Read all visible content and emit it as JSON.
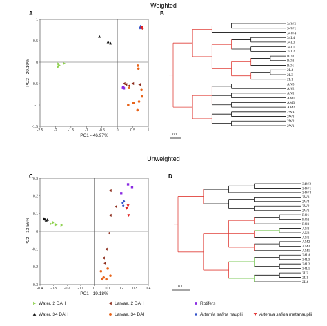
{
  "section_titles": {
    "weighted": "Weighted",
    "unweighted": "Unweighted"
  },
  "panel_labels": {
    "a": "A",
    "b": "B",
    "c": "C",
    "d": "D"
  },
  "colors": {
    "water2": "#8fd14f",
    "water34": "#111111",
    "larvae2": "#8b2a1a",
    "larvae34": "#e8641a",
    "rotifers": "#8a2be2",
    "nauplii": "#3050c8",
    "metanauplii": "#e02020",
    "tree_red": "#e0403a",
    "tree_green": "#7cc85a",
    "tree_black": "#111111"
  },
  "legend": [
    {
      "key": "water2",
      "marker": "triangle-right",
      "label": "Water, 2 DAH"
    },
    {
      "key": "larvae2",
      "marker": "triangle-left",
      "label": "Larvae, 2 DAH"
    },
    {
      "key": "rotifers",
      "marker": "square",
      "label": "Rotifers"
    },
    {
      "key": "water34",
      "marker": "triangle-up",
      "label": "Water, 34 DAH"
    },
    {
      "key": "larvae34",
      "marker": "circle",
      "label": "Larvae, 34 DAH"
    },
    {
      "key": "nauplii",
      "marker": "diamond",
      "label_italic": "Artemia salina",
      "label_rest": " nauplii"
    },
    {
      "key": "metanauplii",
      "marker": "triangle-down",
      "label_italic": "Artemia salina",
      "label_rest": " metanauplii"
    }
  ],
  "tree_b_scale": "0.1",
  "tree_d_scale": "0.1",
  "chart_data": [
    {
      "panel": "A",
      "type": "scatter",
      "xlabel": "PC1 - 46.97%",
      "ylabel": "PC2 - 20.10%",
      "xlim": [
        -2.5,
        1.0
      ],
      "ylim": [
        -1.5,
        1.0
      ],
      "xticks": [
        -2.5,
        -2.0,
        -1.5,
        -1.0,
        -0.5,
        0.0,
        0.5,
        1.0
      ],
      "xtick_labels": [
        "-2.5",
        "-2",
        "-1.5",
        "-1",
        "-0.5",
        "0",
        "0.5",
        "1"
      ],
      "yticks": [
        -1.5,
        -1.0,
        -0.5,
        0.0,
        0.5,
        1.0
      ],
      "ytick_labels": [
        "-1.5",
        "-1",
        "-0.5",
        "0",
        "0.5",
        "1"
      ],
      "series": [
        {
          "group": "water2",
          "points": [
            [
              -1.88,
              -0.07
            ],
            [
              -1.92,
              -0.11
            ],
            [
              -1.72,
              -0.03
            ],
            [
              -1.9,
              -0.04
            ]
          ]
        },
        {
          "group": "water34",
          "points": [
            [
              -0.58,
              0.6
            ],
            [
              -0.3,
              0.47
            ],
            [
              -0.22,
              0.44
            ]
          ]
        },
        {
          "group": "larvae2",
          "points": [
            [
              0.22,
              -0.5
            ],
            [
              0.28,
              -0.52
            ],
            [
              0.38,
              -0.55
            ],
            [
              0.5,
              -0.5
            ],
            [
              0.72,
              -0.52
            ]
          ]
        },
        {
          "group": "larvae34",
          "points": [
            [
              0.66,
              -0.08
            ],
            [
              0.68,
              -0.15
            ],
            [
              0.38,
              -0.6
            ],
            [
              0.78,
              -0.65
            ],
            [
              0.8,
              -0.8
            ],
            [
              0.7,
              -0.92
            ],
            [
              0.52,
              -0.95
            ],
            [
              0.65,
              -1.12
            ],
            [
              0.35,
              -1.0
            ]
          ]
        },
        {
          "group": "rotifers",
          "points": [
            [
              0.18,
              -0.6
            ],
            [
              0.21,
              -0.61
            ],
            [
              0.19,
              -0.59
            ]
          ]
        },
        {
          "group": "nauplii",
          "points": [
            [
              0.75,
              0.84
            ],
            [
              0.73,
              0.8
            ],
            [
              0.77,
              0.79
            ]
          ]
        },
        {
          "group": "metanauplii",
          "points": [
            [
              0.8,
              0.82
            ],
            [
              0.78,
              0.8
            ],
            [
              0.82,
              0.78
            ]
          ]
        }
      ]
    },
    {
      "panel": "C",
      "type": "scatter",
      "xlabel": "PC1 - 19.18%",
      "ylabel": "PC2 - 13.56%",
      "xlim": [
        -0.4,
        0.4
      ],
      "ylim": [
        -0.3,
        0.3
      ],
      "xticks": [
        -0.4,
        -0.3,
        -0.2,
        -0.1,
        0.0,
        0.1,
        0.2,
        0.3,
        0.4
      ],
      "xtick_labels": [
        "-0.4",
        "-0.3",
        "-0.2",
        "-0.1",
        "0",
        "0.1",
        "0.2",
        "0.3",
        "0.4"
      ],
      "yticks": [
        -0.3,
        -0.2,
        -0.1,
        0.0,
        0.1,
        0.2,
        0.3
      ],
      "ytick_labels": [
        "-0.3",
        "-0.2",
        "-0.1",
        "0",
        "0.1",
        "0.2",
        "0.3"
      ],
      "series": [
        {
          "group": "water2",
          "points": [
            [
              -0.32,
              0.042
            ],
            [
              -0.3,
              0.05
            ],
            [
              -0.28,
              0.038
            ],
            [
              -0.24,
              0.035
            ]
          ]
        },
        {
          "group": "water34",
          "points": [
            [
              -0.37,
              0.072
            ],
            [
              -0.36,
              0.068
            ],
            [
              -0.355,
              0.062
            ],
            [
              -0.345,
              0.066
            ]
          ]
        },
        {
          "group": "larvae2",
          "points": [
            [
              0.12,
              0.23
            ],
            [
              0.16,
              0.14
            ],
            [
              0.12,
              0.09
            ],
            [
              0.11,
              -0.01
            ],
            [
              0.09,
              -0.1
            ],
            [
              0.07,
              -0.15
            ],
            [
              0.08,
              -0.18
            ]
          ]
        },
        {
          "group": "larvae34",
          "points": [
            [
              0.07,
              -0.26
            ],
            [
              0.09,
              -0.27
            ],
            [
              0.12,
              -0.25
            ],
            [
              0.06,
              -0.27
            ],
            [
              0.05,
              -0.225
            ],
            [
              0.1,
              -0.21
            ]
          ]
        },
        {
          "group": "rotifers",
          "points": [
            [
              0.25,
              0.265
            ],
            [
              0.28,
              0.25
            ],
            [
              0.2,
              0.215
            ]
          ]
        },
        {
          "group": "nauplii",
          "points": [
            [
              0.21,
              0.16
            ],
            [
              0.215,
              0.145
            ],
            [
              0.22,
              0.17
            ]
          ]
        },
        {
          "group": "metanauplii",
          "points": [
            [
              0.25,
              0.145
            ],
            [
              0.255,
              0.09
            ],
            [
              0.24,
              0.13
            ]
          ]
        }
      ]
    }
  ],
  "tree_b": {
    "panel": "B",
    "type": "tree",
    "tree": {
      "c": "r",
      "ch": [
        {
          "c": "r",
          "ch": [
            {
              "c": "r",
              "ch": [
                {
                  "c": "k",
                  "ch": [
                    {
                      "n": "34W2"
                    },
                    {
                      "n": "34W1"
                    }
                  ]
                },
                {
                  "n": "34W4"
                }
              ]
            },
            {
              "c": "r",
              "ch": [
                {
                  "c": "r",
                  "ch": [
                    {
                      "c": "k",
                      "ch": [
                        {
                          "n": "34L4"
                        },
                        {
                          "n": "34L3"
                        }
                      ]
                    },
                    {
                      "c": "k",
                      "ch": [
                        {
                          "n": "34L1"
                        },
                        {
                          "n": "34L2"
                        }
                      ]
                    }
                  ]
                },
                {
                  "c": "r",
                  "ch": [
                    {
                      "c": "r",
                      "ch": [
                        {
                          "c": "k",
                          "ch": [
                            {
                              "n": "RO3"
                            },
                            {
                              "n": "RO2"
                            }
                          ]
                        },
                        {
                          "n": "RO1"
                        }
                      ]
                    },
                    {
                      "c": "r",
                      "ch": [
                        {
                          "c": "k",
                          "ch": [
                            {
                              "n": "2L4"
                            },
                            {
                              "n": "2L3"
                            }
                          ]
                        },
                        {
                          "n": "2L1"
                        }
                      ]
                    }
                  ]
                }
              ]
            }
          ]
        },
        {
          "c": "r",
          "ch": [
            {
              "c": "r",
              "ch": [
                {
                  "c": "k",
                  "ch": [
                    {
                      "n": "AN3"
                    },
                    {
                      "n": "AN2"
                    }
                  ]
                },
                {
                  "c": "k",
                  "ch": [
                    {
                      "n": "AN1"
                    },
                    {
                      "n": "AM1"
                    }
                  ]
                },
                {
                  "c": "k",
                  "ch": [
                    {
                      "n": "AM3"
                    },
                    {
                      "n": "AM2"
                    }
                  ]
                }
              ]
            },
            {
              "c": "r",
              "ch": [
                {
                  "c": "k",
                  "ch": [
                    {
                      "n": "2W4"
                    },
                    {
                      "n": "2W3"
                    }
                  ]
                },
                {
                  "c": "k",
                  "ch": [
                    {
                      "n": "2W2"
                    },
                    {
                      "n": "2W1"
                    }
                  ]
                }
              ]
            }
          ]
        }
      ]
    }
  },
  "tree_d": {
    "panel": "D",
    "type": "tree",
    "tree": {
      "c": "r",
      "ch": [
        {
          "c": "r",
          "ch": [
            {
              "c": "k",
              "ch": [
                {
                  "c": "k",
                  "ch": [
                    {
                      "n": "34W2"
                    },
                    {
                      "n": "34W1"
                    }
                  ]
                },
                {
                  "n": "34W4"
                }
              ]
            },
            {
              "c": "k",
              "ch": [
                {
                  "c": "k",
                  "ch": [
                    {
                      "n": "2W3"
                    },
                    {
                      "n": "2W4"
                    }
                  ]
                },
                {
                  "c": "k",
                  "ch": [
                    {
                      "n": "2W2"
                    },
                    {
                      "n": "2W1"
                    }
                  ]
                }
              ]
            }
          ]
        },
        {
          "c": "r",
          "ch": [
            {
              "c": "r",
              "ch": [
                {
                  "c": "r",
                  "ch": [
                    {
                      "c": "k",
                      "ch": [
                        {
                          "n": "RO1"
                        },
                        {
                          "n": "RO2"
                        }
                      ]
                    },
                    {
                      "n": "RO3"
                    }
                  ]
                },
                {
                  "c": "r",
                  "ch": [
                    {
                      "c": "g",
                      "ch": [
                        {
                          "n": "AN3"
                        },
                        {
                          "n": "AN2"
                        }
                      ]
                    },
                    {
                      "n": "AN1"
                    }
                  ]
                },
                {
                  "c": "r",
                  "ch": [
                    {
                      "c": "k",
                      "ch": [
                        {
                          "n": "AM2"
                        },
                        {
                          "n": "AM3"
                        }
                      ]
                    },
                    {
                      "n": "AM1"
                    }
                  ]
                }
              ]
            },
            {
              "c": "r",
              "ch": [
                {
                  "c": "g",
                  "ch": [
                    {
                      "c": "k",
                      "ch": [
                        {
                          "n": "34L4"
                        },
                        {
                          "n": "34L3"
                        }
                      ]
                    },
                    {
                      "c": "k",
                      "ch": [
                        {
                          "n": "34L2"
                        },
                        {
                          "n": "34L1"
                        }
                      ]
                    }
                  ]
                },
                {
                  "c": "g",
                  "ch": [
                    {
                      "c": "k",
                      "ch": [
                        {
                          "n": "2L3"
                        },
                        {
                          "n": "2L1"
                        }
                      ]
                    },
                    {
                      "n": "2L4"
                    }
                  ]
                }
              ]
            }
          ]
        }
      ]
    }
  }
}
